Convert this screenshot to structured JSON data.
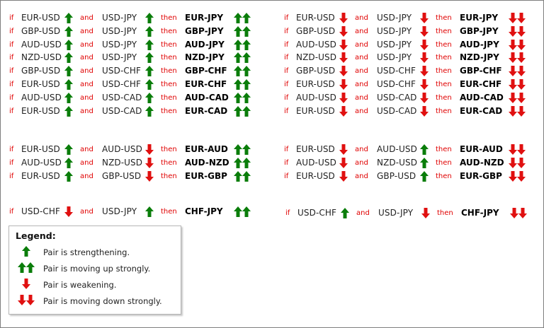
{
  "keywords": {
    "if": "if",
    "and": "and",
    "then": "then"
  },
  "arrow_colors": {
    "up": "#0a7d0a",
    "down": "#e01010"
  },
  "groups": [
    {
      "side": "left",
      "rows": [
        {
          "p1": "EUR-USD",
          "a1": "up",
          "p2": "USD-JPY",
          "a2": "up",
          "result": "EUR-JPY",
          "ra": "up2"
        },
        {
          "p1": "GBP-USD",
          "a1": "up",
          "p2": "USD-JPY",
          "a2": "up",
          "result": "GBP-JPY",
          "ra": "up2"
        },
        {
          "p1": "AUD-USD",
          "a1": "up",
          "p2": "USD-JPY",
          "a2": "up",
          "result": "AUD-JPY",
          "ra": "up2"
        },
        {
          "p1": "NZD-USD",
          "a1": "up",
          "p2": "USD-JPY",
          "a2": "up",
          "result": "NZD-JPY",
          "ra": "up2"
        },
        {
          "p1": "GBP-USD",
          "a1": "up",
          "p2": "USD-CHF",
          "a2": "up",
          "result": "GBP-CHF",
          "ra": "up2"
        },
        {
          "p1": "EUR-USD",
          "a1": "up",
          "p2": "USD-CHF",
          "a2": "up",
          "result": "EUR-CHF",
          "ra": "up2"
        },
        {
          "p1": "AUD-USD",
          "a1": "up",
          "p2": "USD-CAD",
          "a2": "up",
          "result": "AUD-CAD",
          "ra": "up2"
        },
        {
          "p1": "EUR-USD",
          "a1": "up",
          "p2": "USD-CAD",
          "a2": "up",
          "result": "EUR-CAD",
          "ra": "up2"
        }
      ]
    },
    {
      "side": "right",
      "rows": [
        {
          "p1": "EUR-USD",
          "a1": "down",
          "p2": "USD-JPY",
          "a2": "down",
          "result": "EUR-JPY",
          "ra": "down2"
        },
        {
          "p1": "GBP-USD",
          "a1": "down",
          "p2": "USD-JPY",
          "a2": "down",
          "result": "GBP-JPY",
          "ra": "down2"
        },
        {
          "p1": "AUD-USD",
          "a1": "down",
          "p2": "USD-JPY",
          "a2": "down",
          "result": "AUD-JPY",
          "ra": "down2"
        },
        {
          "p1": "NZD-USD",
          "a1": "down",
          "p2": "USD-JPY",
          "a2": "down",
          "result": "NZD-JPY",
          "ra": "down2"
        },
        {
          "p1": "GBP-USD",
          "a1": "down",
          "p2": "USD-CHF",
          "a2": "down",
          "result": "GBP-CHF",
          "ra": "down2"
        },
        {
          "p1": "EUR-USD",
          "a1": "down",
          "p2": "USD-CHF",
          "a2": "down",
          "result": "EUR-CHF",
          "ra": "down2"
        },
        {
          "p1": "AUD-USD",
          "a1": "down",
          "p2": "USD-CAD",
          "a2": "down",
          "result": "AUD-CAD",
          "ra": "down2"
        },
        {
          "p1": "EUR-USD",
          "a1": "down",
          "p2": "USD-CAD",
          "a2": "down",
          "result": "EUR-CAD",
          "ra": "down2"
        }
      ]
    },
    {
      "side": "left",
      "rows": [
        {
          "p1": "EUR-USD",
          "a1": "up",
          "p2": "AUD-USD",
          "a2": "down",
          "result": "EUR-AUD",
          "ra": "up2"
        },
        {
          "p1": "AUD-USD",
          "a1": "up",
          "p2": "NZD-USD",
          "a2": "down",
          "result": "AUD-NZD",
          "ra": "up2"
        },
        {
          "p1": "EUR-USD",
          "a1": "up",
          "p2": "GBP-USD",
          "a2": "down",
          "result": "EUR-GBP",
          "ra": "up2"
        }
      ]
    },
    {
      "side": "right",
      "rows": [
        {
          "p1": "EUR-USD",
          "a1": "down",
          "p2": "AUD-USD",
          "a2": "up",
          "result": "EUR-AUD",
          "ra": "down2"
        },
        {
          "p1": "AUD-USD",
          "a1": "down",
          "p2": "NZD-USD",
          "a2": "up",
          "result": "AUD-NZD",
          "ra": "down2"
        },
        {
          "p1": "EUR-USD",
          "a1": "down",
          "p2": "GBP-USD",
          "a2": "up",
          "result": "EUR-GBP",
          "ra": "down2"
        }
      ]
    },
    {
      "side": "left",
      "rows": [
        {
          "p1": "USD-CHF",
          "a1": "down",
          "p2": "USD-JPY",
          "a2": "up",
          "result": "CHF-JPY",
          "ra": "up2"
        }
      ]
    },
    {
      "side": "right",
      "rows": [
        {
          "p1": "USD-CHF",
          "a1": "up",
          "p2": "USD-JPY",
          "a2": "down",
          "result": "CHF-JPY",
          "ra": "down2"
        }
      ]
    }
  ],
  "legend": {
    "title": "Legend:",
    "items": [
      {
        "icon": "up",
        "text": "Pair is strengthening."
      },
      {
        "icon": "up2",
        "text": "Pair is moving up strongly."
      },
      {
        "icon": "down",
        "text": "Pair is weakening."
      },
      {
        "icon": "down2",
        "text": "Pair is moving down strongly."
      }
    ]
  }
}
